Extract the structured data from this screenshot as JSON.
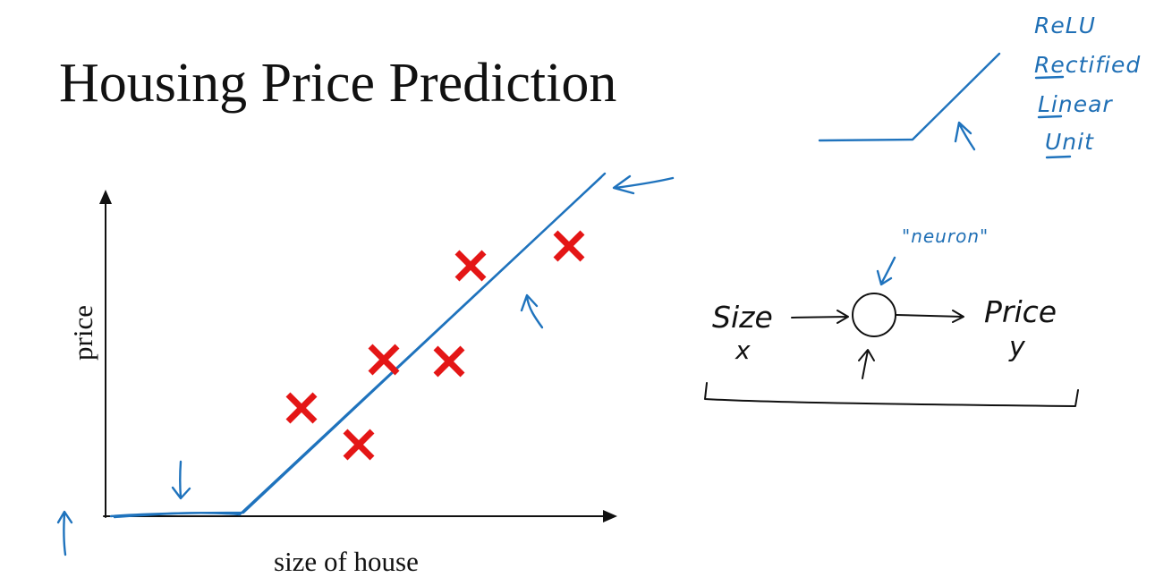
{
  "slide": {
    "title": "Housing Price Prediction"
  },
  "plot": {
    "xlabel": "size of house",
    "ylabel": "price",
    "data_point_count": 6
  },
  "relu_note": {
    "lines": [
      "ReLU",
      "Rectified",
      "Linear",
      "Unit"
    ]
  },
  "neuron_diagram": {
    "neuron_label": "\"neuron\"",
    "input_label": "Size",
    "input_var": "x",
    "output_label": "Price",
    "output_var": "y"
  },
  "colors": {
    "ink_blue": "#1f73bd",
    "cross_red": "#e41616",
    "text": "#111111"
  }
}
